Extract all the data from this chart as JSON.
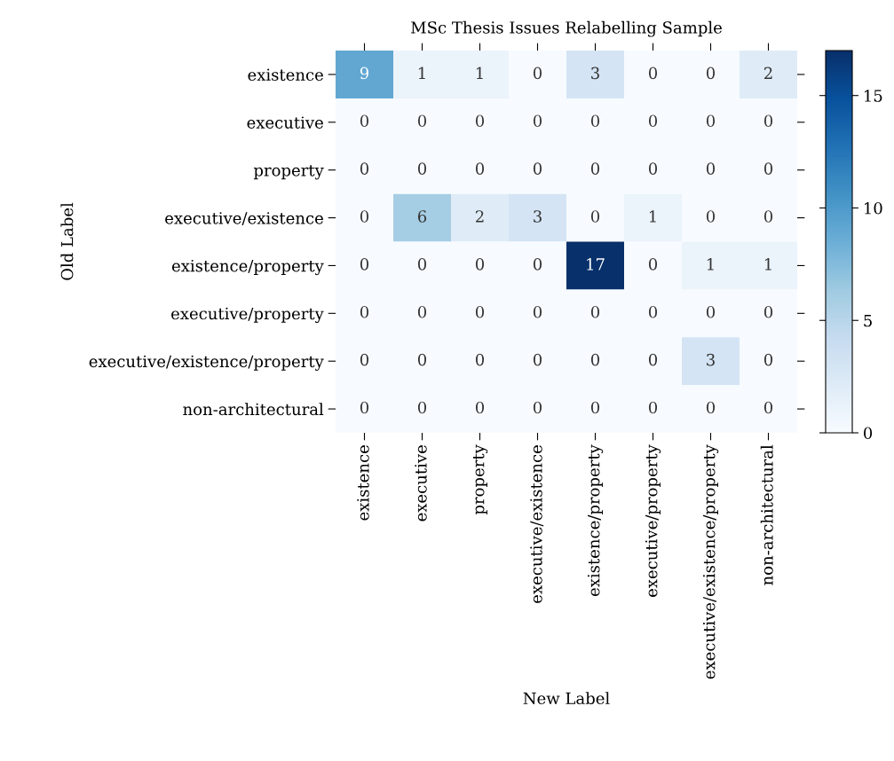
{
  "chart_data": {
    "type": "heatmap",
    "title": "MSc Thesis Issues Relabelling Sample",
    "xlabel": "New Label",
    "ylabel": "Old Label",
    "categories": [
      "existence",
      "executive",
      "property",
      "executive/existence",
      "existence/property",
      "executive/property",
      "executive/existence/property",
      "non-architectural"
    ],
    "y_categories": [
      "existence",
      "executive",
      "property",
      "executive/existence",
      "existence/property",
      "executive/property",
      "executive/existence/property",
      "non-architectural"
    ],
    "cells": [
      [
        9,
        1,
        1,
        0,
        3,
        0,
        0,
        2
      ],
      [
        0,
        0,
        0,
        0,
        0,
        0,
        0,
        0
      ],
      [
        0,
        0,
        0,
        0,
        0,
        0,
        0,
        0
      ],
      [
        0,
        6,
        2,
        3,
        0,
        1,
        0,
        0
      ],
      [
        0,
        0,
        0,
        0,
        17,
        0,
        1,
        1
      ],
      [
        0,
        0,
        0,
        0,
        0,
        0,
        0,
        0
      ],
      [
        0,
        0,
        0,
        0,
        0,
        0,
        3,
        0
      ],
      [
        0,
        0,
        0,
        0,
        0,
        0,
        0,
        0
      ]
    ],
    "clim": [
      0,
      17
    ],
    "cticks": [
      0,
      5,
      10,
      15
    ],
    "data_labels": true
  }
}
